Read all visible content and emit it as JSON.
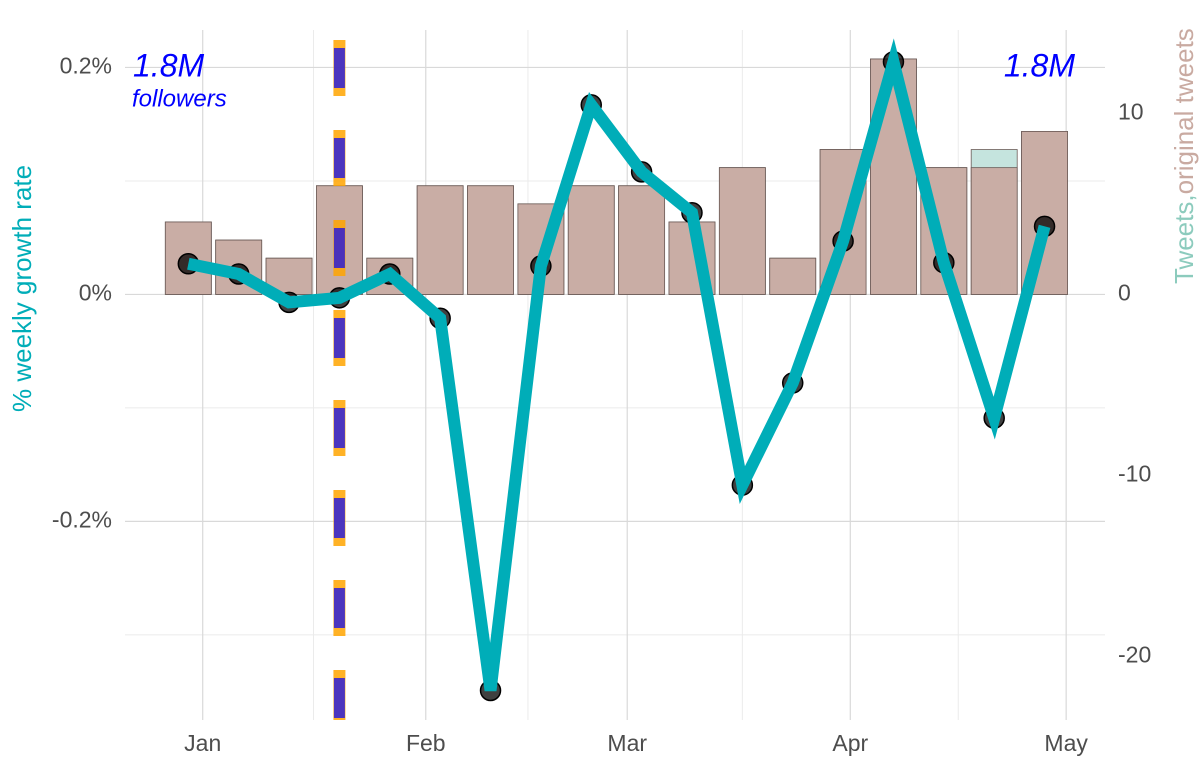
{
  "chart_data": {
    "type": "bar_line",
    "x": [
      -2,
      5,
      12,
      19,
      26,
      33,
      40,
      47,
      54,
      61,
      68,
      75,
      82,
      89,
      96,
      103,
      110,
      117
    ],
    "xlim": [
      -10.8,
      125.4
    ],
    "xticks": [
      {
        "value": 0,
        "label": "Jan"
      },
      {
        "value": 31,
        "label": "Feb"
      },
      {
        "value": 59,
        "label": "Mar"
      },
      {
        "value": 90,
        "label": "Apr"
      },
      {
        "value": 120,
        "label": "May"
      }
    ],
    "xminor": [
      15.4,
      45.2,
      75,
      105
    ],
    "ylim": [
      -0.375,
      0.233
    ],
    "yticks": [
      {
        "value": -0.2,
        "label": "-0.2%"
      },
      {
        "value": 0,
        "label": "0%"
      },
      {
        "value": 0.2,
        "label": "0.2%"
      }
    ],
    "yminor": [
      -0.3,
      -0.1,
      0.1
    ],
    "y2lim": [
      -23.5,
      14.6
    ],
    "y2ticks": [
      -20,
      -10,
      0,
      10
    ],
    "ylabel": "% weekly growth rate",
    "y2label": [
      {
        "text": "Tweets,",
        "color": "#8ccbbd"
      },
      {
        "text": "original tweets",
        "color": "#c9aaa1"
      }
    ],
    "grid": true,
    "series": [
      {
        "name": "Tweets",
        "kind": "bar",
        "axis": "y2",
        "color": "#c2e3dc",
        "values": [
          4,
          3,
          2,
          6,
          2,
          6,
          6,
          5,
          6,
          6,
          4,
          7,
          2,
          8,
          13,
          7,
          8,
          9
        ]
      },
      {
        "name": "original tweets",
        "kind": "bar",
        "axis": "y2",
        "color": "#c9aaa1",
        "values": [
          4,
          3,
          2,
          6,
          2,
          6,
          6,
          5,
          6,
          6,
          4,
          7,
          2,
          8,
          13,
          7,
          7,
          9
        ]
      },
      {
        "name": "% weekly growth rate",
        "kind": "line",
        "color": "#00adb8",
        "values": [
          0.027,
          0.018,
          -0.007,
          -0.003,
          0.018,
          -0.021,
          -0.349,
          0.025,
          0.167,
          0.108,
          0.072,
          -0.168,
          -0.078,
          0.047,
          0.205,
          0.028,
          -0.109,
          0.06
        ]
      }
    ],
    "vline": {
      "x": 19,
      "colors": [
        "#ffa500",
        "#0000ff"
      ]
    },
    "annotations": [
      "1.8M",
      "followers",
      "1.8M"
    ]
  }
}
